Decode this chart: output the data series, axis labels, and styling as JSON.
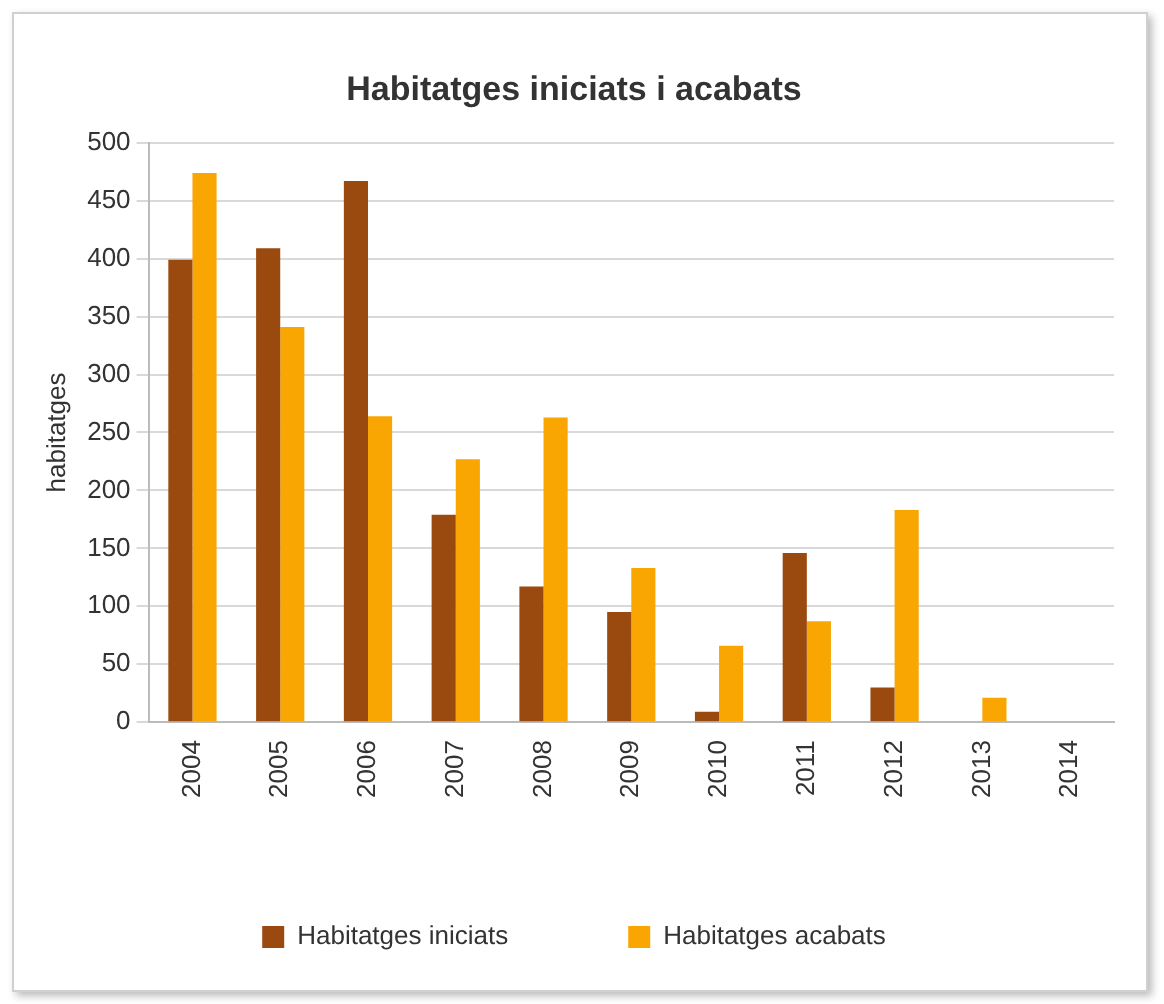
{
  "chart_data": {
    "type": "bar",
    "title": "Habitatges iniciats i acabats",
    "ylabel": "habitatges",
    "categories": [
      "2004",
      "2005",
      "2006",
      "2007",
      "2008",
      "2009",
      "2010",
      "2011",
      "2012",
      "2013",
      "2014"
    ],
    "series": [
      {
        "name": "Habitatges iniciats",
        "color": "#9a4a0e",
        "values": [
          399,
          409,
          467,
          179,
          117,
          95,
          9,
          146,
          30,
          0,
          0
        ]
      },
      {
        "name": "Habitatges acabats",
        "color": "#f9a602",
        "values": [
          474,
          341,
          264,
          227,
          263,
          133,
          66,
          87,
          183,
          21,
          0
        ]
      }
    ],
    "ylim": [
      0,
      500
    ],
    "yticks": [
      0,
      50,
      100,
      150,
      200,
      250,
      300,
      350,
      400,
      450,
      500
    ],
    "grid": "y",
    "legend": "bottom"
  }
}
